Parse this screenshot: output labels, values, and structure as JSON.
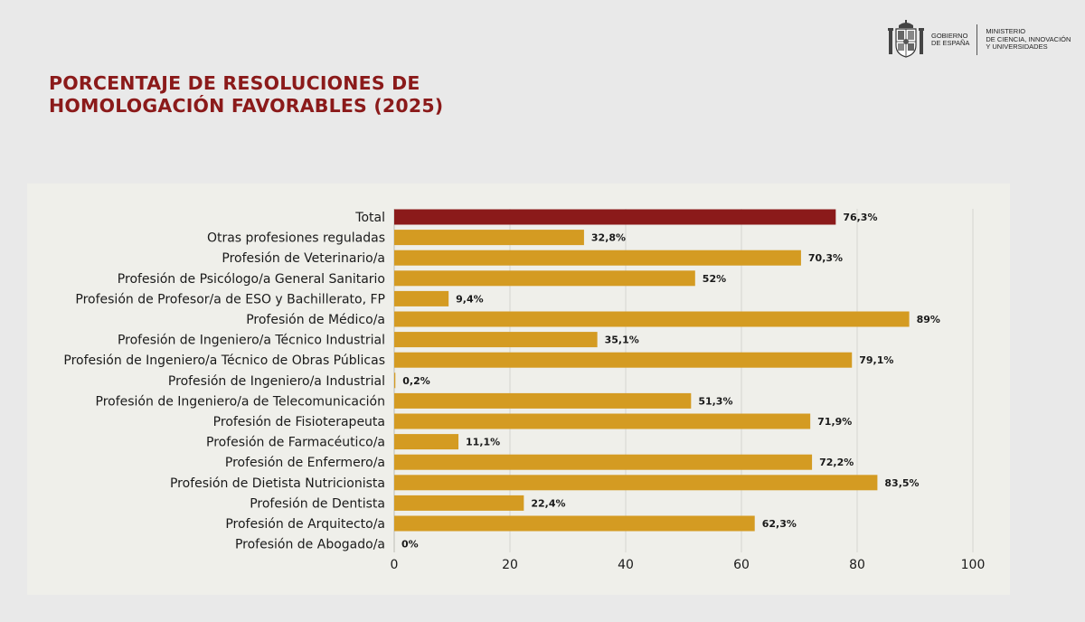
{
  "header": {
    "gov_line1": "Gobierno",
    "gov_line2": "de España",
    "ministry_line1": "Ministerio",
    "ministry_line2": "de Ciencia, Innovación",
    "ministry_line3": "y Universidades"
  },
  "chart_data": {
    "type": "bar",
    "orientation": "horizontal",
    "title_line1": "PORCENTAJE DE RESOLUCIONES DE",
    "title_line2": "HOMOLOGACIÓN FAVORABLES (2025)",
    "categories": [
      "Total",
      "Otras profesiones reguladas",
      "Profesión de Veterinario/a",
      "Profesión de Psicólogo/a General Sanitario",
      "Profesión de Profesor/a de ESO y Bachillerato, FP",
      "Profesión de Médico/a",
      "Profesión de Ingeniero/a Técnico Industrial",
      "Profesión de Ingeniero/a Técnico de Obras Públicas",
      "Profesión de Ingeniero/a Industrial",
      "Profesión de Ingeniero/a de Telecomunicación",
      "Profesión de Fisioterapeuta",
      "Profesión de Farmacéutico/a",
      "Profesión de Enfermero/a",
      "Profesión de Dietista Nutricionista",
      "Profesión de Dentista",
      "Profesión de Arquitecto/a",
      "Profesión de Abogado/a"
    ],
    "values": [
      76.3,
      32.8,
      70.3,
      52,
      9.4,
      89,
      35.1,
      79.1,
      0.2,
      51.3,
      71.9,
      11.1,
      72.2,
      83.5,
      22.4,
      62.3,
      0
    ],
    "value_labels": [
      "76,3%",
      "32,8%",
      "70,3%",
      "52%",
      "9,4%",
      "89%",
      "35,1%",
      "79,1%",
      "0,2%",
      "51,3%",
      "71,9%",
      "11,1%",
      "72,2%",
      "83,5%",
      "22,4%",
      "62,3%",
      "0%"
    ],
    "xlim": [
      0,
      100
    ],
    "xticks": [
      0,
      20,
      40,
      60,
      80,
      100
    ],
    "grid": "vertical",
    "colors": {
      "total": "#8b1a1a",
      "default": "#d49b22",
      "grid": "#d6d6d0"
    }
  }
}
